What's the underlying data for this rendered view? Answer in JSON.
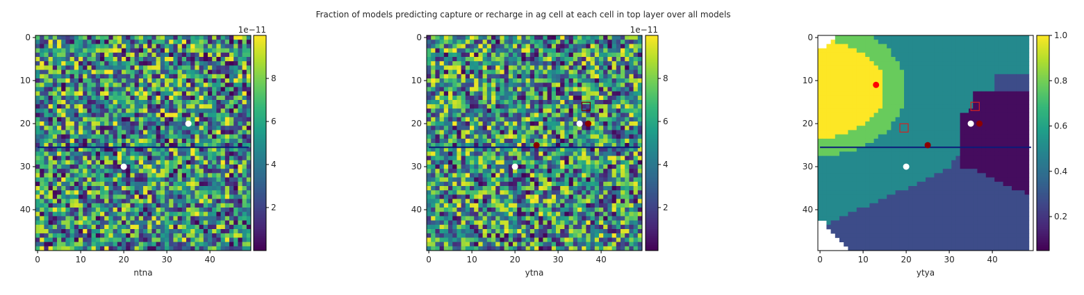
{
  "figure_title": "Fraction of models predicting capture or recharge in ag cell at each cell in top layer over all models",
  "chart_data": [
    {
      "type": "heatmap",
      "grid_size": [
        50,
        50
      ],
      "xlabel": "ntna",
      "xticks": [
        0,
        10,
        20,
        30,
        40
      ],
      "yticks": [
        0,
        10,
        20,
        30,
        40
      ],
      "xlim": [
        -0.5,
        49.5
      ],
      "ylim": [
        49.5,
        -0.5
      ],
      "colormap": "viridis",
      "value_pattern": "random noise",
      "color_range": [
        0,
        1e-10
      ],
      "colorbar_ticks": [
        "2",
        "4",
        "6",
        "8"
      ],
      "colorbar_tick_values": [
        2e-11,
        4e-11,
        6e-11,
        8e-11
      ],
      "colorbar_offset": "1e−11",
      "line": {
        "x": [
          0,
          49
        ],
        "y": [
          25.5,
          25.5
        ],
        "color": "#0a1a7a"
      },
      "points": [
        {
          "x": 35,
          "y": 20,
          "color": "#ffffff"
        },
        {
          "x": 20,
          "y": 30,
          "color": "#ffffff"
        }
      ],
      "squares": []
    },
    {
      "type": "heatmap",
      "grid_size": [
        50,
        50
      ],
      "xlabel": "ytna",
      "xticks": [
        0,
        10,
        20,
        30,
        40
      ],
      "yticks": [
        0,
        10,
        20,
        30,
        40
      ],
      "xlim": [
        -0.5,
        49.5
      ],
      "ylim": [
        49.5,
        -0.5
      ],
      "colormap": "viridis",
      "value_pattern": "random noise",
      "color_range": [
        0,
        1e-10
      ],
      "colorbar_ticks": [
        "2",
        "4",
        "6",
        "8"
      ],
      "colorbar_tick_values": [
        2e-11,
        4e-11,
        6e-11,
        8e-11
      ],
      "colorbar_offset": "1e−11",
      "line": {
        "x": [
          0,
          49
        ],
        "y": [
          25.5,
          25.5
        ],
        "color": "#0a1a7a"
      },
      "points": [
        {
          "x": 35,
          "y": 20,
          "color": "#ffffff"
        },
        {
          "x": 20,
          "y": 30,
          "color": "#ffffff"
        },
        {
          "x": 37,
          "y": 20,
          "color": "#8b0000"
        },
        {
          "x": 25,
          "y": 25,
          "color": "#8b0000"
        }
      ],
      "squares": [
        {
          "x": 36.5,
          "y": 16,
          "color": "#7a0000"
        }
      ]
    },
    {
      "type": "heatmap",
      "grid_size": [
        50,
        50
      ],
      "xlabel": "ytya",
      "xticks": [
        0,
        10,
        20,
        30,
        40
      ],
      "yticks": [
        0,
        10,
        20,
        30,
        40
      ],
      "xlim": [
        -0.5,
        49.5
      ],
      "ylim": [
        49.5,
        -0.5
      ],
      "colormap": "viridis",
      "value_pattern": "zones",
      "zone_values": {
        "capture_high": 1.0,
        "capture_mid": 0.78,
        "background": 0.5,
        "lower": 0.27,
        "recharge": 0.08,
        "outside": "nodata"
      },
      "color_range": [
        0.05,
        1.0
      ],
      "colorbar_ticks": [
        "0.2",
        "0.4",
        "0.6",
        "0.8",
        "1.0"
      ],
      "colorbar_tick_values": [
        0.2,
        0.4,
        0.6,
        0.8,
        1.0
      ],
      "colorbar_offset": "",
      "line": {
        "x": [
          0,
          49
        ],
        "y": [
          25.5,
          25.5
        ],
        "color": "#0a1a7a"
      },
      "points": [
        {
          "x": 13,
          "y": 11,
          "color": "#ff0000"
        },
        {
          "x": 35,
          "y": 20,
          "color": "#ffffff"
        },
        {
          "x": 37,
          "y": 20,
          "color": "#8b0000"
        },
        {
          "x": 25,
          "y": 25,
          "color": "#8b0000"
        },
        {
          "x": 20,
          "y": 30,
          "color": "#ffffff"
        }
      ],
      "squares": [
        {
          "x": 19.5,
          "y": 21,
          "color": "#d62020"
        },
        {
          "x": 36,
          "y": 16,
          "color": "#d62020"
        }
      ]
    }
  ]
}
